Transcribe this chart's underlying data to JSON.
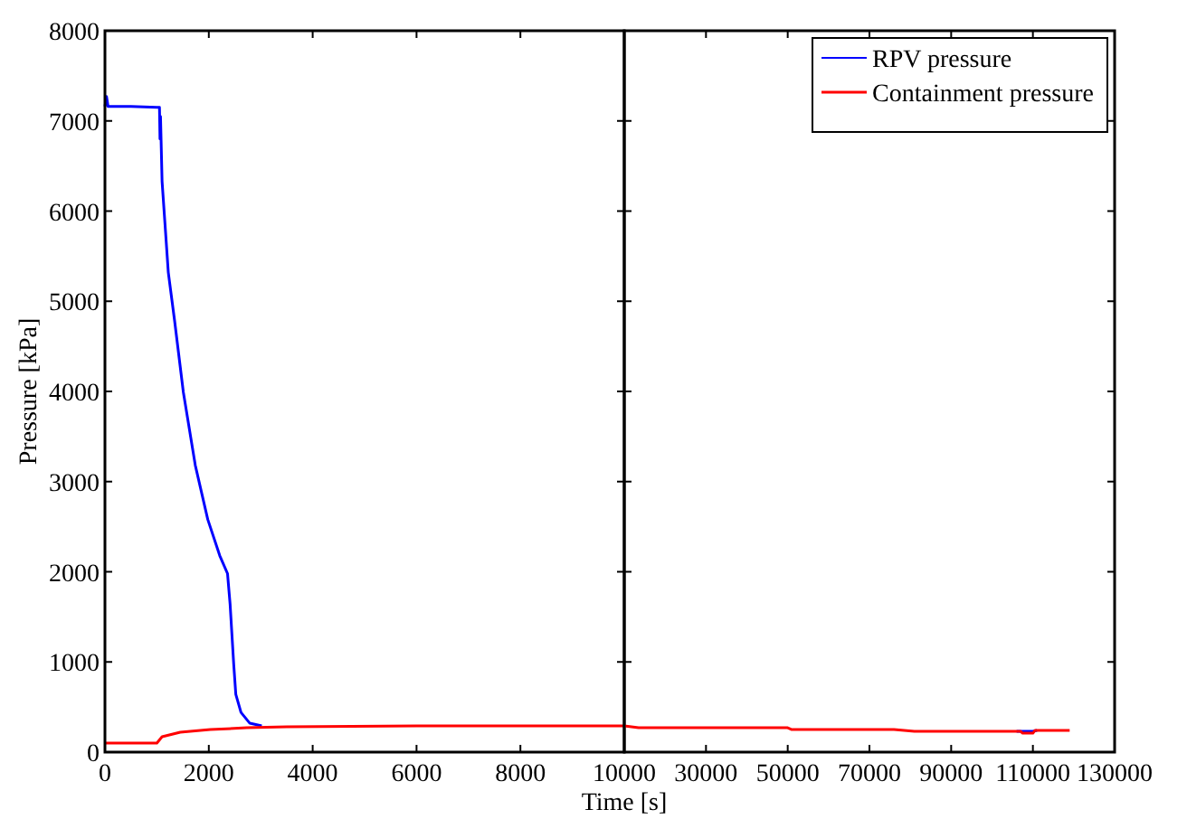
{
  "chart_data": [
    {
      "type": "line",
      "xlabel": "Time [s]",
      "ylabel": "Pressure [kPa]",
      "xlim": [
        0,
        10000
      ],
      "xticks": [
        0,
        2000,
        4000,
        6000,
        8000,
        10000
      ],
      "ylim": [
        0,
        8000
      ],
      "yticks": [
        0,
        1000,
        2000,
        3000,
        4000,
        5000,
        6000,
        7000,
        8000
      ],
      "series": [
        {
          "color": "#0000ff",
          "x": [
            0,
            30,
            60,
            500,
            1000,
            1050,
            1060,
            1070,
            1100,
            1220,
            1340,
            1510,
            1740,
            1980,
            2210,
            2360,
            2410,
            2480,
            2520,
            2620,
            2790,
            3020
          ],
          "values": [
            7160,
            7270,
            7160,
            7160,
            7150,
            7150,
            6800,
            7050,
            6330,
            5320,
            4790,
            3990,
            3180,
            2580,
            2180,
            1980,
            1640,
            970,
            640,
            440,
            320,
            290
          ]
        },
        {
          "color": "#ff0000",
          "x": [
            0,
            500,
            1000,
            1100,
            1450,
            2030,
            2730,
            3500,
            6000,
            10000
          ],
          "values": [
            100,
            100,
            100,
            170,
            220,
            250,
            270,
            280,
            290,
            290
          ]
        }
      ]
    },
    {
      "type": "line",
      "xlim": [
        10000,
        130000
      ],
      "xticks": [
        {
          "value": 10000,
          "label": null
        },
        30000,
        50000,
        70000,
        90000,
        110000,
        130000
      ],
      "ylim": [
        0,
        8000
      ],
      "yticks": [
        0,
        1000,
        2000,
        3000,
        4000,
        5000,
        6000,
        7000,
        8000
      ],
      "tick_labels": "x",
      "legend": "top right",
      "series": [
        {
          "name": "RPV pressure",
          "color": "#0000ff",
          "x": [
            106000,
            107500,
            110000,
            111000
          ],
          "values": [
            230,
            230,
            230,
            240
          ]
        },
        {
          "name": "Containment pressure",
          "color": "#ff0000",
          "x": [
            10000,
            13500,
            50000,
            51000,
            76000,
            81000,
            107000,
            107500,
            110000,
            110500,
            119000
          ],
          "values": [
            290,
            270,
            270,
            250,
            250,
            230,
            230,
            210,
            210,
            240,
            240
          ]
        }
      ]
    }
  ]
}
